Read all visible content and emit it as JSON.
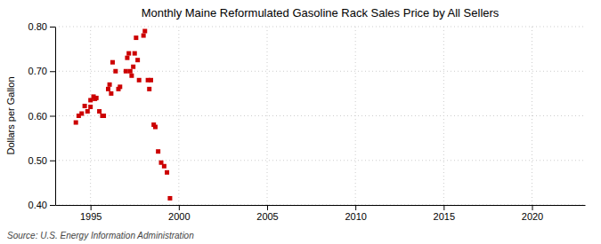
{
  "chart_data": {
    "type": "scatter",
    "title": "Monthly Maine Reformulated Gasoline Rack Sales Price by All Sellers",
    "ylabel": "Dollars per Gallon",
    "annotations": [
      "Source: U.S. Energy Information Administration"
    ],
    "x": [
      1994.17,
      1994.33,
      1994.5,
      1994.67,
      1994.83,
      1995.0,
      1995.0,
      1995.17,
      1995.25,
      1995.33,
      1995.5,
      1995.67,
      1995.75,
      1996.0,
      1996.08,
      1996.17,
      1996.25,
      1996.42,
      1996.58,
      1996.67,
      1997.0,
      1997.08,
      1997.17,
      1997.25,
      1997.33,
      1997.42,
      1997.5,
      1997.58,
      1997.67,
      1997.75,
      1998.0,
      1998.08,
      1998.25,
      1998.33,
      1998.42,
      1998.58,
      1998.67,
      1998.83,
      1999.0,
      1999.17,
      1999.33,
      1999.5
    ],
    "values": [
      0.585,
      0.6,
      0.605,
      0.622,
      0.61,
      0.635,
      0.62,
      0.643,
      0.638,
      0.64,
      0.61,
      0.6,
      0.6,
      0.66,
      0.67,
      0.65,
      0.72,
      0.7,
      0.66,
      0.665,
      0.7,
      0.73,
      0.74,
      0.7,
      0.69,
      0.71,
      0.74,
      0.775,
      0.725,
      0.68,
      0.78,
      0.79,
      0.68,
      0.66,
      0.68,
      0.58,
      0.575,
      0.52,
      0.495,
      0.487,
      0.473,
      0.415
    ],
    "color": "#cc0000",
    "marker": "square",
    "xlim": [
      1993.0,
      2023.0
    ],
    "ylim": [
      0.4,
      0.8
    ],
    "xticks": [
      1995,
      2000,
      2005,
      2010,
      2015,
      2020
    ],
    "yticks": [
      {
        "value": 0.4,
        "label": "0.40"
      },
      {
        "value": 0.5,
        "label": "0.50"
      },
      {
        "value": 0.6,
        "label": "0.60"
      },
      {
        "value": 0.7,
        "label": "0.70"
      },
      {
        "value": 0.8,
        "label": "0.80"
      }
    ],
    "grid": true
  }
}
